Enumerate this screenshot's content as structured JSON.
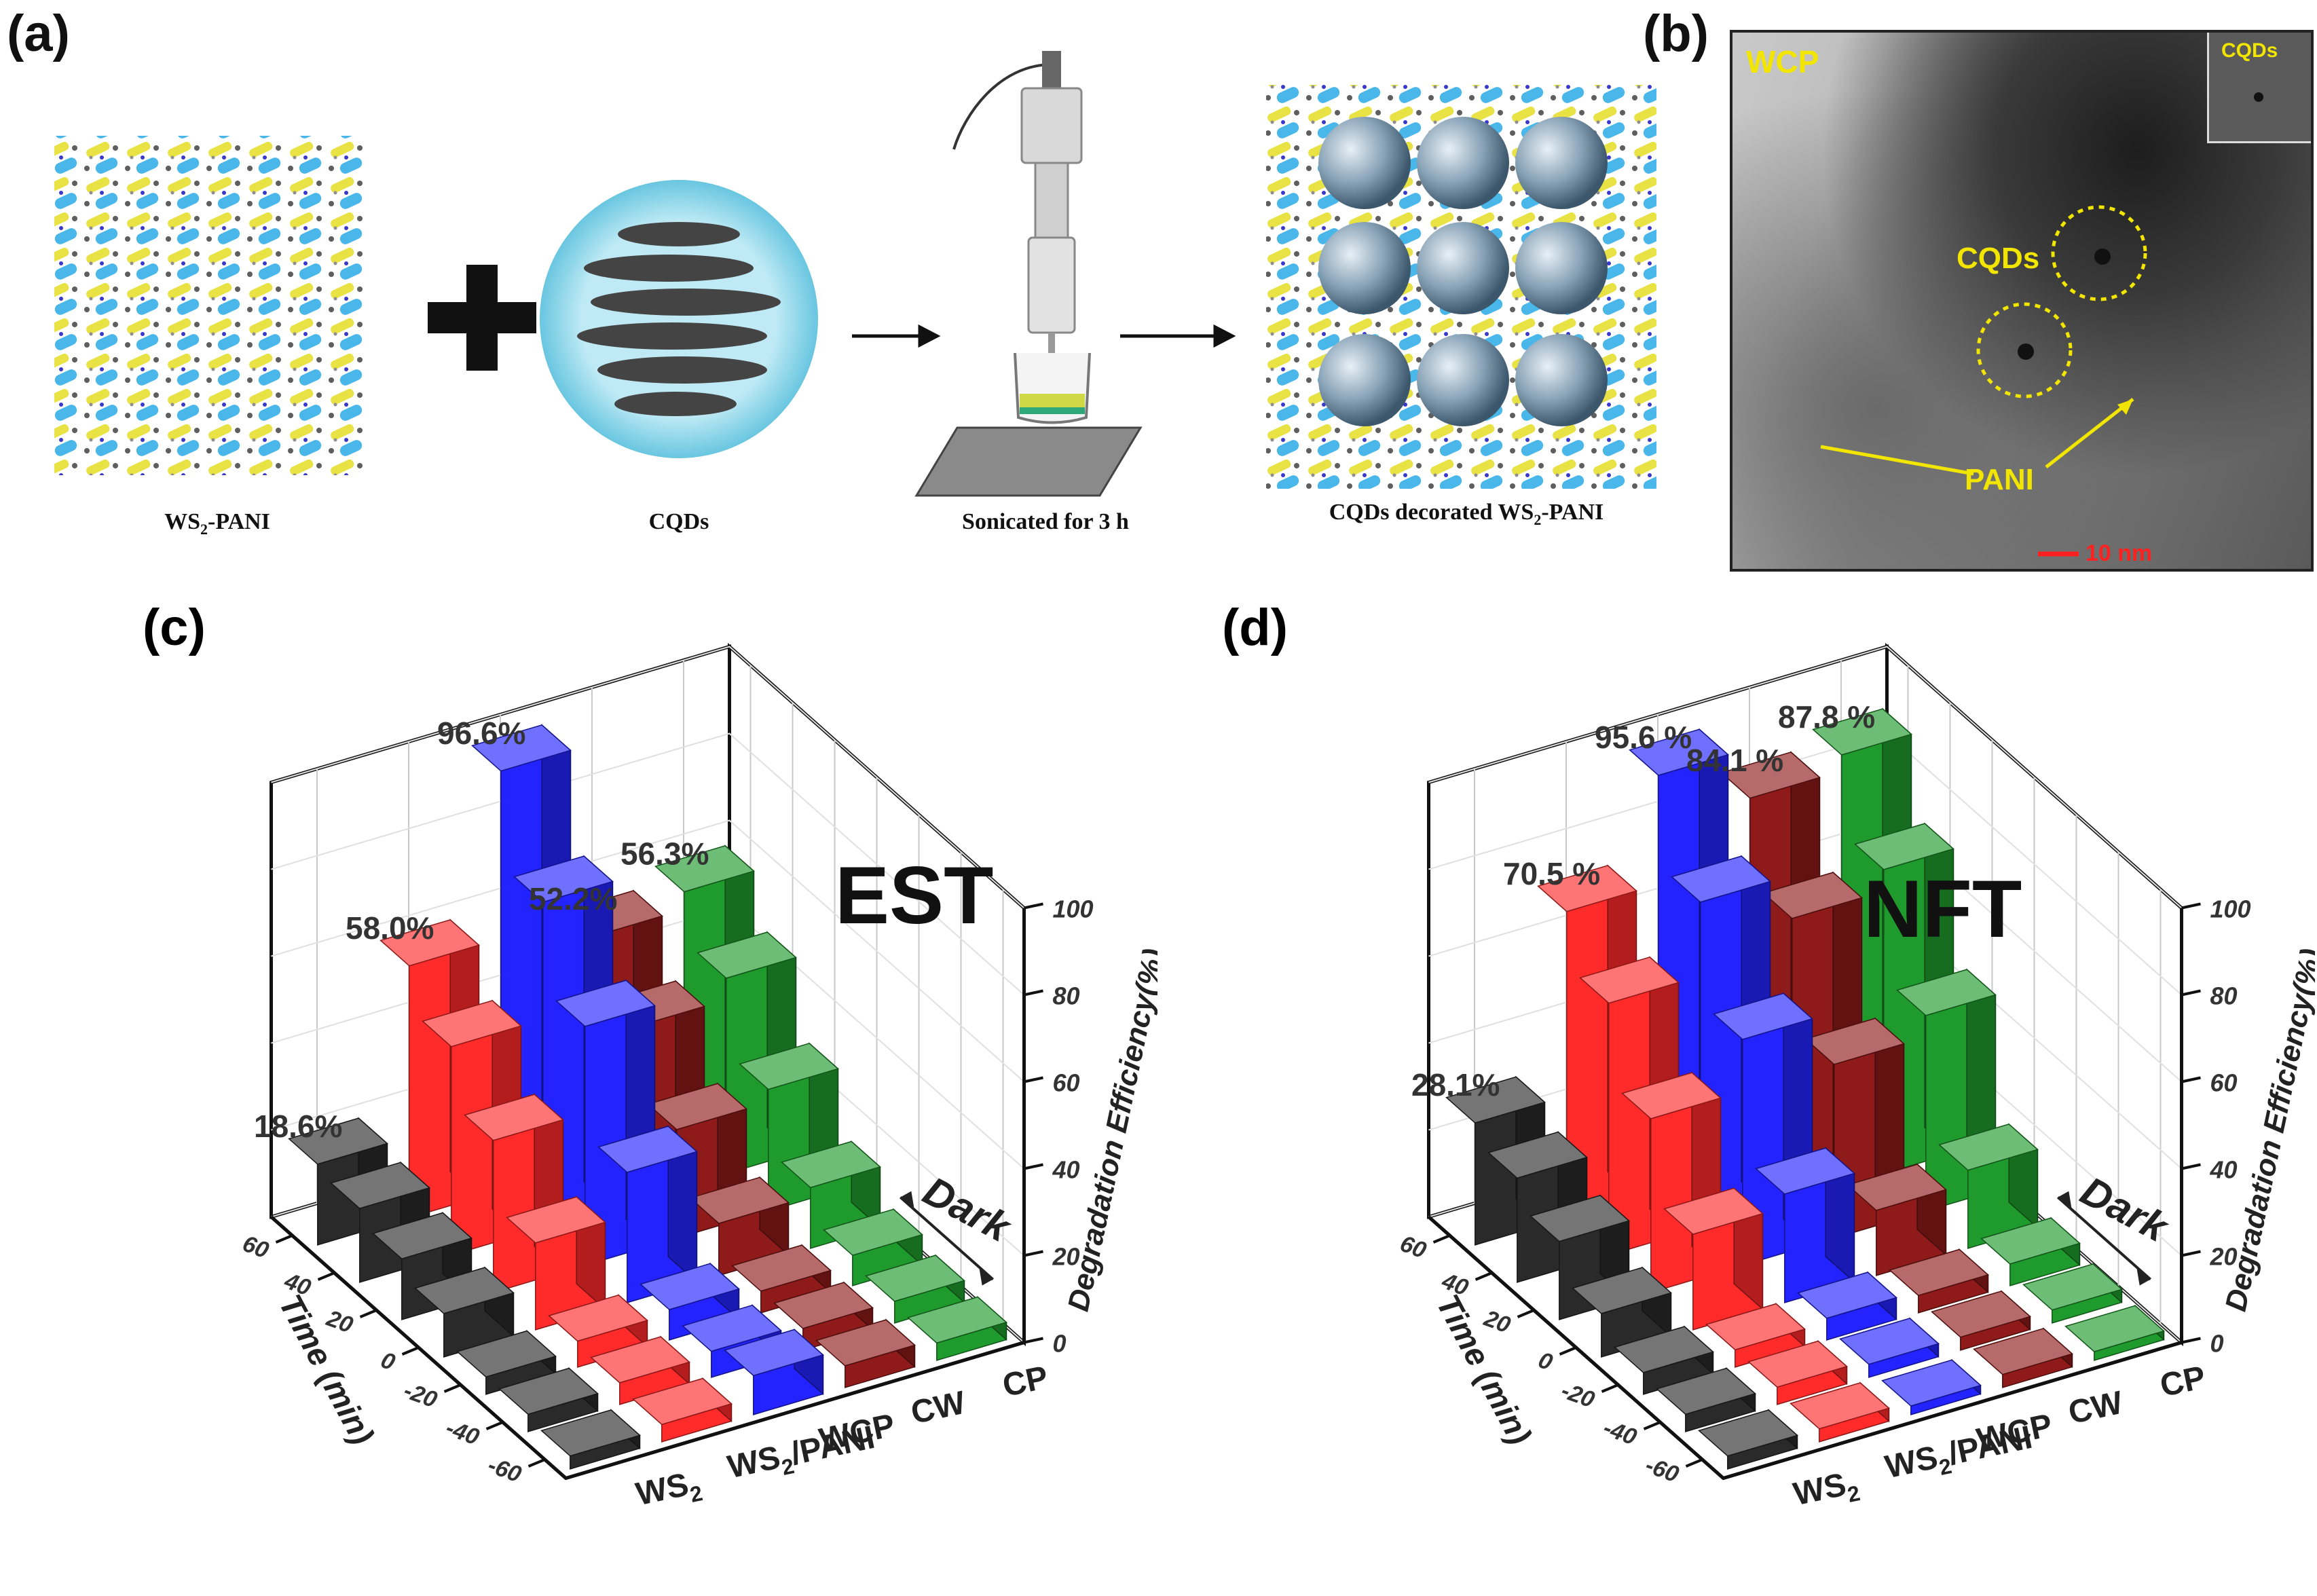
{
  "panel_a": {
    "letter": "(a)",
    "captions": [
      "WS2-PANI",
      "CQDs",
      "Sonicated for 3 h",
      "CQDs decorated WS2-PANI"
    ]
  },
  "panel_b": {
    "letter": "(b)",
    "labels": {
      "wcp": "WCP",
      "inset": "CQDs",
      "cqds": "CQDs",
      "pani": "PANI",
      "scale": "10 nm"
    }
  },
  "colors": {
    "WS2": "#2a2a2a",
    "WS2/PANI": "#ff2a2a",
    "WCP": "#2323ff",
    "CW": "#8e1a1a",
    "CP": "#1f9a2c"
  },
  "chart_data": [
    {
      "type": "bar",
      "panel": "(c)",
      "title": "EST",
      "zlabel": "Degradation Efficiency(%)",
      "ylabel": "Time (min)",
      "time": [
        -60,
        -40,
        -20,
        0,
        20,
        40,
        60
      ],
      "time_ticks": [
        -60,
        -40,
        -20,
        0,
        20,
        40,
        60
      ],
      "z_ticks": [
        0,
        20,
        40,
        60,
        80,
        100
      ],
      "zlim": [
        0,
        100
      ],
      "annotation": "Dark",
      "series": [
        {
          "name": "WS2",
          "label": "WS",
          "sub": "2",
          "values": [
            3,
            4,
            4,
            10,
            14,
            17,
            18.6
          ],
          "peak_label": "18.6%"
        },
        {
          "name": "WS2/PANI",
          "label": "WS",
          "sub": "2",
          "suffix": "/PANI",
          "values": [
            4,
            5,
            6,
            20,
            35,
            48,
            58.0
          ],
          "peak_label": "58.0%"
        },
        {
          "name": "WCP",
          "label": "WCP",
          "values": [
            9,
            6,
            7,
            30,
            55,
            75,
            96.6
          ],
          "peak_label": "96.6%"
        },
        {
          "name": "CW",
          "label": "CW",
          "values": [
            5,
            5,
            5,
            12,
            25,
            40,
            52.2
          ],
          "peak_label": "52.2%"
        },
        {
          "name": "CP",
          "label": "CP",
          "values": [
            4,
            5,
            7,
            14,
            28,
            45,
            56.3
          ],
          "peak_label": "56.3%"
        }
      ]
    },
    {
      "type": "bar",
      "panel": "(d)",
      "title": "NFT",
      "zlabel": "Degradation Efficiency(%)",
      "ylabel": "Time (min)",
      "time": [
        -60,
        -40,
        -20,
        0,
        20,
        40,
        60
      ],
      "time_ticks": [
        -60,
        -40,
        -20,
        0,
        20,
        40,
        60
      ],
      "z_ticks": [
        0,
        20,
        40,
        60,
        80,
        100
      ],
      "zlim": [
        0,
        100
      ],
      "annotation": "Dark",
      "series": [
        {
          "name": "WS2",
          "label": "WS",
          "sub": "2",
          "values": [
            3,
            4,
            5,
            10,
            18,
            24,
            28.1
          ],
          "peak_label": "28.1%"
        },
        {
          "name": "WS2/PANI",
          "label": "WS",
          "sub": "2",
          "suffix": "/PANI",
          "values": [
            3,
            4,
            4,
            22,
            40,
            58,
            70.5
          ],
          "peak_label": "70.5 %"
        },
        {
          "name": "WCP",
          "label": "WCP",
          "values": [
            2,
            3,
            5,
            25,
            52,
            75,
            95.6
          ],
          "peak_label": "95.6 %"
        },
        {
          "name": "CW",
          "label": "CW",
          "values": [
            3,
            3,
            4,
            15,
            40,
            65,
            84.1
          ],
          "peak_label": "84.1 %"
        },
        {
          "name": "CP",
          "label": "CP",
          "values": [
            2,
            3,
            5,
            18,
            45,
            70,
            87.8
          ],
          "peak_label": "87.8 %"
        }
      ]
    }
  ]
}
